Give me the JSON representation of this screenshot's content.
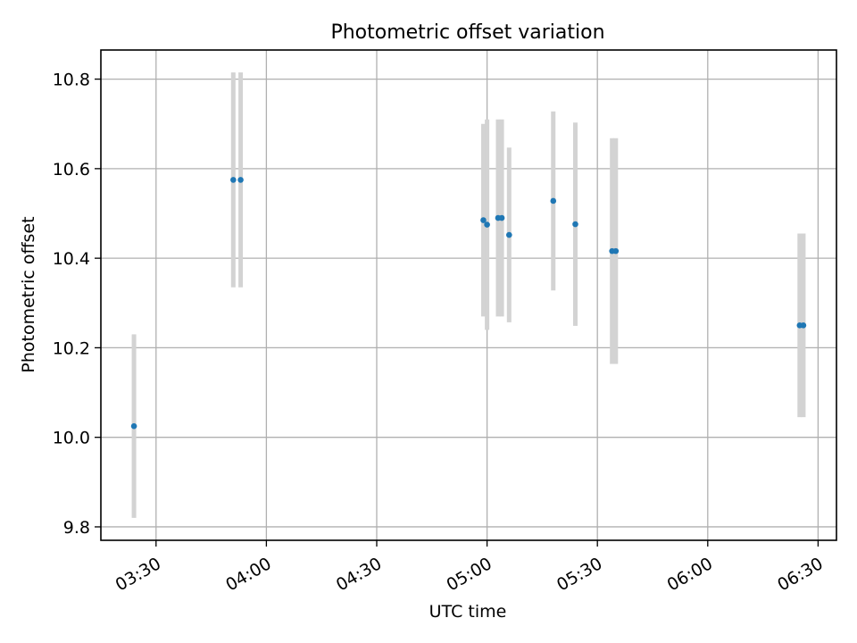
{
  "chart_data": {
    "type": "scatter",
    "title": "Photometric offset variation",
    "xlabel": "UTC time",
    "ylabel": "Photometric offset",
    "x_format": "time HH:MM (UTC)",
    "xlim": [
      "03:15",
      "06:35"
    ],
    "ylim": [
      9.77,
      10.865
    ],
    "x_ticks": [
      "03:30",
      "04:00",
      "04:30",
      "05:00",
      "05:30",
      "06:00",
      "06:30"
    ],
    "y_ticks": [
      "9.8",
      "10.0",
      "10.2",
      "10.4",
      "10.6",
      "10.8"
    ],
    "grid": true,
    "legend": false,
    "colors": {
      "marker": "#1f77b4",
      "errorbar": "#d3d3d3",
      "grid": "#b0b0b0"
    },
    "series": [
      {
        "points": [
          {
            "x": "03:24",
            "y": 10.025,
            "yerr": 0.205
          },
          {
            "x": "03:51",
            "y": 10.575,
            "yerr": 0.24
          },
          {
            "x": "03:53",
            "y": 10.575,
            "yerr": 0.24
          },
          {
            "x": "04:59",
            "y": 10.485,
            "yerr": 0.215
          },
          {
            "x": "05:00",
            "y": 10.475,
            "yerr": 0.235
          },
          {
            "x": "05:03",
            "y": 10.49,
            "yerr": 0.22
          },
          {
            "x": "05:04",
            "y": 10.49,
            "yerr": 0.22
          },
          {
            "x": "05:06",
            "y": 10.452,
            "yerr": 0.195
          },
          {
            "x": "05:18",
            "y": 10.528,
            "yerr": 0.2
          },
          {
            "x": "05:24",
            "y": 10.476,
            "yerr": 0.227
          },
          {
            "x": "05:34",
            "y": 10.416,
            "yerr": 0.252
          },
          {
            "x": "05:35",
            "y": 10.416,
            "yerr": 0.252
          },
          {
            "x": "06:25",
            "y": 10.25,
            "yerr": 0.205
          },
          {
            "x": "06:26",
            "y": 10.25,
            "yerr": 0.205
          }
        ]
      }
    ]
  }
}
